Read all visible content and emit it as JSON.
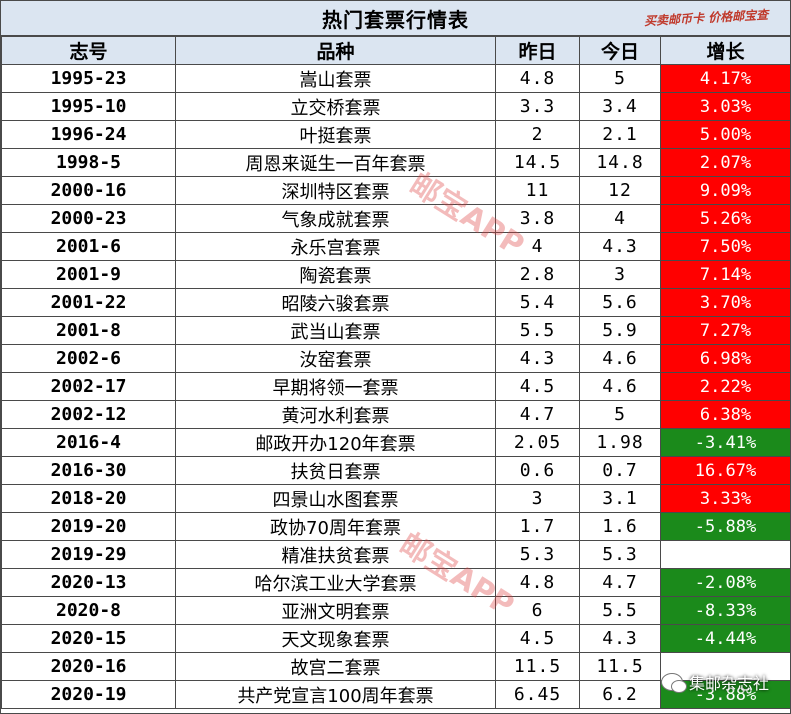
{
  "title": "热门套票行情表",
  "stamp": "买卖邮币卡 价格邮宝查",
  "headers": [
    "志号",
    "品种",
    "昨日",
    "今日",
    "增长"
  ],
  "rows": [
    {
      "code": "1995-23",
      "name": "嵩山套票",
      "prev": "4.8",
      "today": "5",
      "change": "4.17%",
      "trend": "up"
    },
    {
      "code": "1995-10",
      "name": "立交桥套票",
      "prev": "3.3",
      "today": "3.4",
      "change": "3.03%",
      "trend": "up"
    },
    {
      "code": "1996-24",
      "name": "叶挺套票",
      "prev": "2",
      "today": "2.1",
      "change": "5.00%",
      "trend": "up"
    },
    {
      "code": "1998-5",
      "name": "周恩来诞生一百年套票",
      "prev": "14.5",
      "today": "14.8",
      "change": "2.07%",
      "trend": "up"
    },
    {
      "code": "2000-16",
      "name": "深圳特区套票",
      "prev": "11",
      "today": "12",
      "change": "9.09%",
      "trend": "up"
    },
    {
      "code": "2000-23",
      "name": "气象成就套票",
      "prev": "3.8",
      "today": "4",
      "change": "5.26%",
      "trend": "up"
    },
    {
      "code": "2001-6",
      "name": "永乐宫套票",
      "prev": "4",
      "today": "4.3",
      "change": "7.50%",
      "trend": "up"
    },
    {
      "code": "2001-9",
      "name": "陶瓷套票",
      "prev": "2.8",
      "today": "3",
      "change": "7.14%",
      "trend": "up"
    },
    {
      "code": "2001-22",
      "name": "昭陵六骏套票",
      "prev": "5.4",
      "today": "5.6",
      "change": "3.70%",
      "trend": "up"
    },
    {
      "code": "2001-8",
      "name": "武当山套票",
      "prev": "5.5",
      "today": "5.9",
      "change": "7.27%",
      "trend": "up"
    },
    {
      "code": "2002-6",
      "name": "汝窑套票",
      "prev": "4.3",
      "today": "4.6",
      "change": "6.98%",
      "trend": "up"
    },
    {
      "code": "2002-17",
      "name": "早期将领一套票",
      "prev": "4.5",
      "today": "4.6",
      "change": "2.22%",
      "trend": "up"
    },
    {
      "code": "2002-12",
      "name": "黄河水利套票",
      "prev": "4.7",
      "today": "5",
      "change": "6.38%",
      "trend": "up"
    },
    {
      "code": "2016-4",
      "name": "邮政开办120年套票",
      "prev": "2.05",
      "today": "1.98",
      "change": "-3.41%",
      "trend": "down"
    },
    {
      "code": "2016-30",
      "name": "扶贫日套票",
      "prev": "0.6",
      "today": "0.7",
      "change": "16.67%",
      "trend": "up"
    },
    {
      "code": "2018-20",
      "name": "四景山水图套票",
      "prev": "3",
      "today": "3.1",
      "change": "3.33%",
      "trend": "up"
    },
    {
      "code": "2019-20",
      "name": "政协70周年套票",
      "prev": "1.7",
      "today": "1.6",
      "change": "-5.88%",
      "trend": "down"
    },
    {
      "code": "2019-29",
      "name": "精准扶贫套票",
      "prev": "5.3",
      "today": "5.3",
      "change": "",
      "trend": "flat"
    },
    {
      "code": "2020-13",
      "name": "哈尔滨工业大学套票",
      "prev": "4.8",
      "today": "4.7",
      "change": "-2.08%",
      "trend": "down"
    },
    {
      "code": "2020-8",
      "name": "亚洲文明套票",
      "prev": "6",
      "today": "5.5",
      "change": "-8.33%",
      "trend": "down"
    },
    {
      "code": "2020-15",
      "name": "天文现象套票",
      "prev": "4.5",
      "today": "4.3",
      "change": "-4.44%",
      "trend": "down"
    },
    {
      "code": "2020-16",
      "name": "故宫二套票",
      "prev": "11.5",
      "today": "11.5",
      "change": "",
      "trend": "flat"
    },
    {
      "code": "2020-19",
      "name": "共产党宣言100周年套票",
      "prev": "6.45",
      "today": "6.2",
      "change": "-3.88%",
      "trend": "down"
    }
  ],
  "watermark": "邮宝APP",
  "badge": "集邮杂志社",
  "colors": {
    "up": "#ff0000",
    "down": "#1b8a1b",
    "header_bg": "#dbe5f1"
  }
}
